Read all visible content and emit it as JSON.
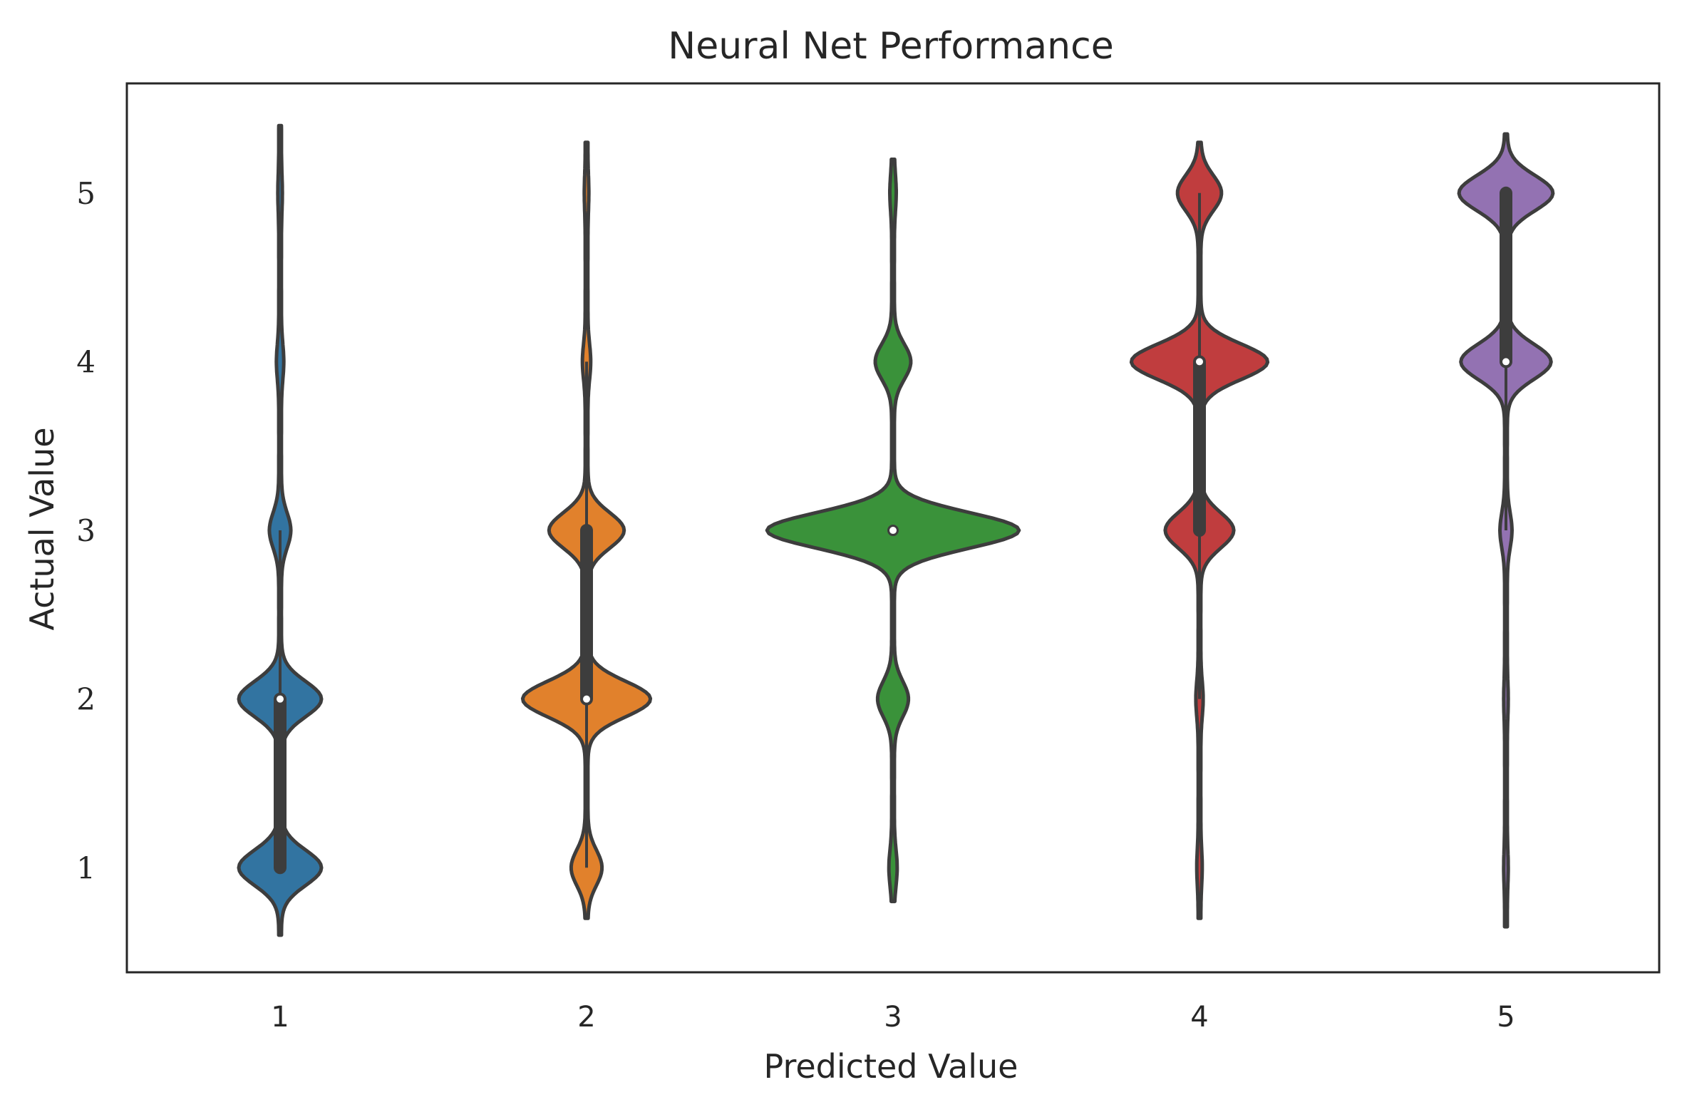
{
  "chart_data": {
    "type": "violin",
    "title": "Neural Net Performance",
    "xlabel": "Predicted Value",
    "ylabel": "Actual Value",
    "categories": [
      "1",
      "2",
      "3",
      "4",
      "5"
    ],
    "y_ticks": [
      "1",
      "2",
      "3",
      "4",
      "5"
    ],
    "ylim": [
      0.38,
      5.65
    ],
    "grid": false,
    "legend": "none",
    "colors": [
      "#3274a1",
      "#e1812c",
      "#3a923a",
      "#c03d3e",
      "#9372b2"
    ],
    "outline_color": "#3d3d3d",
    "series": [
      {
        "category": "1",
        "min": 0.6,
        "max": 5.4,
        "q1": 1.0,
        "median": 2.0,
        "q3": 2.0,
        "whisker_low": 1.0,
        "whisker_high": 3.0,
        "density": [
          [
            1,
            0.85
          ],
          [
            2,
            0.85
          ],
          [
            3,
            0.2
          ],
          [
            4,
            0.05
          ],
          [
            5,
            0.02
          ]
        ]
      },
      {
        "category": "2",
        "min": 0.7,
        "max": 5.3,
        "q1": 2.0,
        "median": 2.0,
        "q3": 3.0,
        "whisker_low": 1.0,
        "whisker_high": 4.0,
        "density": [
          [
            1,
            0.3
          ],
          [
            2,
            1.33
          ],
          [
            3,
            0.77
          ],
          [
            4,
            0.06
          ],
          [
            5,
            0.02
          ]
        ]
      },
      {
        "category": "3",
        "min": 0.8,
        "max": 5.2,
        "q1": 3.0,
        "median": 3.0,
        "q3": 3.0,
        "whisker_low": 3.0,
        "whisker_high": 3.0,
        "density": [
          [
            1,
            0.06
          ],
          [
            2,
            0.3
          ],
          [
            3,
            2.65
          ],
          [
            4,
            0.35
          ],
          [
            5,
            0.04
          ]
        ]
      },
      {
        "category": "4",
        "min": 0.7,
        "max": 5.3,
        "q1": 3.0,
        "median": 4.0,
        "q3": 4.0,
        "whisker_low": 2.0,
        "whisker_high": 5.0,
        "density": [
          [
            1,
            0.03
          ],
          [
            2,
            0.05
          ],
          [
            3,
            0.7
          ],
          [
            4,
            1.42
          ],
          [
            5,
            0.44
          ]
        ]
      },
      {
        "category": "5",
        "min": 0.65,
        "max": 5.35,
        "q1": 4.0,
        "median": 4.0,
        "q3": 5.0,
        "whisker_low": 3.0,
        "whisker_high": 5.0,
        "density": [
          [
            1,
            0.02
          ],
          [
            2,
            0.02
          ],
          [
            3,
            0.1
          ],
          [
            4,
            0.93
          ],
          [
            5,
            0.97
          ]
        ]
      }
    ]
  }
}
